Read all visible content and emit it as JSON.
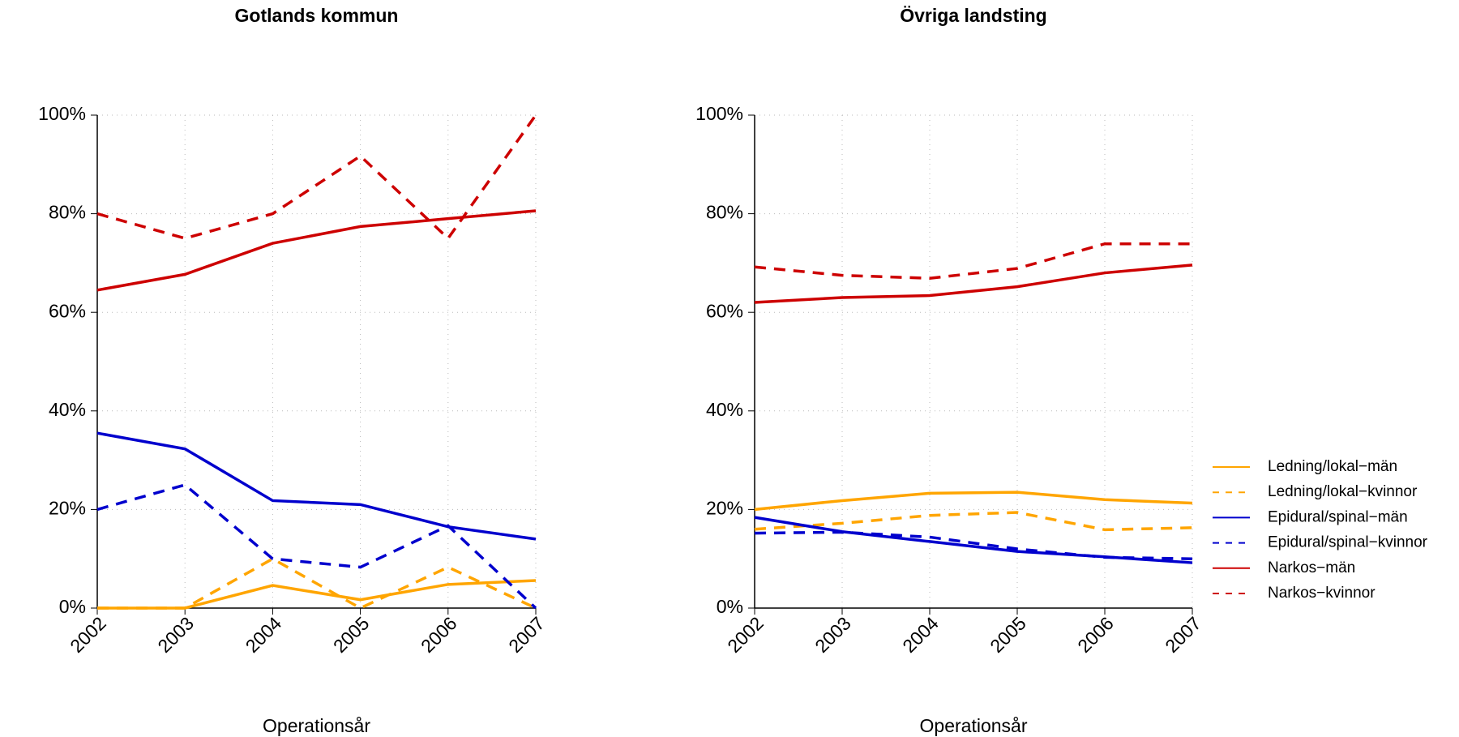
{
  "chart_data": [
    {
      "type": "line",
      "title": "Gotlands kommun",
      "xlabel": "Operationsår",
      "x": [
        2002,
        2003,
        2004,
        2005,
        2006,
        2007
      ],
      "xlim": [
        2002,
        2007
      ],
      "xticks": [
        2002,
        2003,
        2004,
        2005,
        2006,
        2007
      ],
      "ylim": [
        0,
        100
      ],
      "yticks": [
        {
          "value": 0,
          "label": "0%"
        },
        {
          "value": 20,
          "label": "20%"
        },
        {
          "value": 40,
          "label": "40%"
        },
        {
          "value": 60,
          "label": "60%"
        },
        {
          "value": 80,
          "label": "80%"
        },
        {
          "value": 100,
          "label": "100%"
        }
      ],
      "grid": true,
      "series": [
        {
          "color": "#ffa500",
          "dashed": false,
          "values": [
            0,
            0,
            4.6,
            1.7,
            4.8,
            5.6
          ]
        },
        {
          "color": "#ffa500",
          "dashed": true,
          "values": [
            0,
            0,
            10,
            0,
            8.3,
            0
          ]
        },
        {
          "color": "#0000cd",
          "dashed": false,
          "values": [
            35.5,
            32.3,
            21.8,
            21,
            16.5,
            14
          ]
        },
        {
          "color": "#0000cd",
          "dashed": true,
          "values": [
            20,
            25,
            10,
            8.3,
            16.7,
            0
          ]
        },
        {
          "color": "#cd0000",
          "dashed": false,
          "values": [
            64.5,
            67.7,
            74,
            77.4,
            79,
            80.6
          ]
        },
        {
          "color": "#cd0000",
          "dashed": true,
          "values": [
            80,
            75,
            80,
            91.7,
            75,
            100
          ]
        }
      ]
    },
    {
      "type": "line",
      "title": "Övriga landsting",
      "xlabel": "Operationsår",
      "x": [
        2002,
        2003,
        2004,
        2005,
        2006,
        2007
      ],
      "xlim": [
        2002,
        2007
      ],
      "xticks": [
        2002,
        2003,
        2004,
        2005,
        2006,
        2007
      ],
      "ylim": [
        0,
        100
      ],
      "yticks": [
        {
          "value": 0,
          "label": "0%"
        },
        {
          "value": 20,
          "label": "20%"
        },
        {
          "value": 40,
          "label": "40%"
        },
        {
          "value": 60,
          "label": "60%"
        },
        {
          "value": 80,
          "label": "80%"
        },
        {
          "value": 100,
          "label": "100%"
        }
      ],
      "grid": true,
      "legend": "right",
      "series": [
        {
          "name": "Ledning/lokal−män",
          "color": "#ffa500",
          "dashed": false,
          "values": [
            20,
            21.8,
            23.3,
            23.5,
            22,
            21.3
          ]
        },
        {
          "name": "Ledning/lokal−kvinnor",
          "color": "#ffa500",
          "dashed": true,
          "values": [
            16,
            17.2,
            18.8,
            19.4,
            15.9,
            16.3
          ]
        },
        {
          "name": "Epidural/spinal−män",
          "color": "#0000cd",
          "dashed": false,
          "values": [
            18.4,
            15.5,
            13.5,
            11.5,
            10.4,
            9.2
          ]
        },
        {
          "name": "Epidural/spinal−kvinnor",
          "color": "#0000cd",
          "dashed": true,
          "values": [
            15.2,
            15.4,
            14.4,
            12,
            10.3,
            10
          ]
        },
        {
          "name": "Narkos−män",
          "color": "#cd0000",
          "dashed": false,
          "values": [
            62,
            63,
            63.4,
            65.2,
            68,
            69.6
          ]
        },
        {
          "name": "Narkos−kvinnor",
          "color": "#cd0000",
          "dashed": true,
          "values": [
            69.2,
            67.5,
            66.9,
            68.9,
            73.9,
            73.9
          ]
        }
      ]
    }
  ]
}
